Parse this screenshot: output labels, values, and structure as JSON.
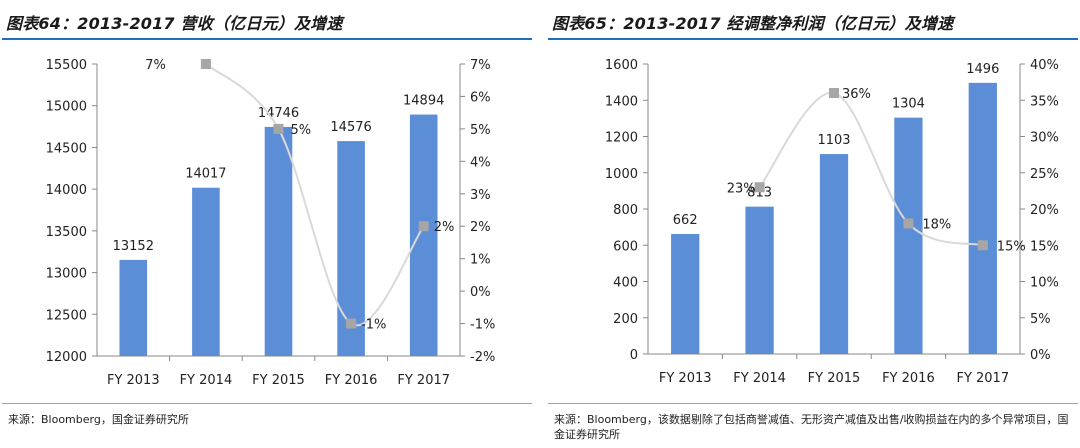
{
  "charts": [
    {
      "title": "图表64：2013-2017 营收（亿日元）及增速",
      "source": "来源：Bloomberg，国金证券研究所",
      "chart_data": {
        "type": "bar+line",
        "categories": [
          "FY 2013",
          "FY 2014",
          "FY 2015",
          "FY 2016",
          "FY 2017"
        ],
        "series": [
          {
            "type": "bar",
            "axis": "left",
            "values": [
              13152,
              14017,
              14746,
              14576,
              14894
            ],
            "labels": [
              "13152",
              "14017",
              "14746",
              "14576",
              "14894"
            ]
          },
          {
            "type": "line",
            "axis": "right",
            "values": [
              null,
              7,
              5,
              -1,
              2
            ],
            "labels": [
              "",
              "7%",
              "5%",
              "-1%",
              "2%"
            ]
          }
        ],
        "y_left": {
          "min": 12000,
          "max": 15500,
          "ticks": [
            "12000",
            "12500",
            "13000",
            "13500",
            "14000",
            "14500",
            "15000",
            "15500"
          ]
        },
        "y_right": {
          "min": -2,
          "max": 7,
          "ticks": [
            "-2%",
            "-1%",
            "0%",
            "1%",
            "2%",
            "3%",
            "4%",
            "5%",
            "6%",
            "7%"
          ]
        },
        "colors": {
          "bar": "#5b8ed6",
          "line": "#d9d9d9",
          "marker": "#a6a6a6"
        }
      }
    },
    {
      "title": "图表65：2013-2017 经调整净利润（亿日元）及增速",
      "source": "来源：Bloomberg，该数据剔除了包括商誉减值、无形资产减值及出售/收购损益在内的多个异常项目，国金证券研究所",
      "chart_data": {
        "type": "bar+line",
        "categories": [
          "FY 2013",
          "FY 2014",
          "FY 2015",
          "FY 2016",
          "FY 2017"
        ],
        "series": [
          {
            "type": "bar",
            "axis": "left",
            "values": [
              662,
              813,
              1103,
              1304,
              1496
            ],
            "labels": [
              "662",
              "813",
              "1103",
              "1304",
              "1496"
            ]
          },
          {
            "type": "line",
            "axis": "right",
            "values": [
              null,
              23,
              36,
              18,
              15
            ],
            "labels": [
              "",
              "23%",
              "36%",
              "18%",
              "15%"
            ]
          }
        ],
        "y_left": {
          "min": 0,
          "max": 1600,
          "ticks": [
            "0",
            "200",
            "400",
            "600",
            "800",
            "1000",
            "1200",
            "1400",
            "1600"
          ]
        },
        "y_right": {
          "min": 0,
          "max": 40,
          "ticks": [
            "0%",
            "5%",
            "10%",
            "15%",
            "20%",
            "25%",
            "30%",
            "35%",
            "40%"
          ]
        },
        "colors": {
          "bar": "#5b8ed6",
          "line": "#d9d9d9",
          "marker": "#a6a6a6"
        }
      }
    }
  ]
}
